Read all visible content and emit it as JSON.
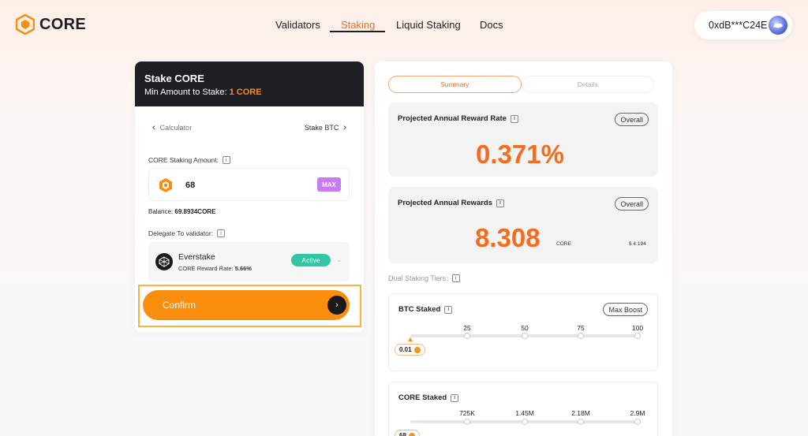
{
  "header": {
    "logo_text": "CORE",
    "nav": [
      {
        "label": "Validators"
      },
      {
        "label": "Staking"
      },
      {
        "label": "Liquid Staking"
      },
      {
        "label": "Docs"
      }
    ],
    "wallet_address": "0xdB***C24E"
  },
  "stake_card": {
    "title": "Stake CORE",
    "min_label": "Min Amount to Stake:",
    "min_value": "1 CORE",
    "calculator_label": "Calculator",
    "stake_btc_label": "Stake BTC",
    "amount_label": "CORE Staking Amount:",
    "amount_value": "68",
    "max_label": "MAX",
    "balance_label": "Balance:",
    "balance_value": "69.8934CORE",
    "delegate_label": "Delegate To validator:",
    "validator_name": "Everstake",
    "validator_rate_label": "CORE Reward Rate:",
    "validator_rate_value": "5.66%",
    "validator_status": "Active",
    "confirm_label": "Confirm"
  },
  "summary": {
    "tabs": [
      {
        "label": "Summary"
      },
      {
        "label": "Details"
      }
    ],
    "rate_title": "Projected Annual Reward Rate",
    "rate_value": "0.371%",
    "overall_label": "Overall",
    "rewards_title": "Projected Annual Rewards",
    "rewards_value": "8.308",
    "rewards_unit": "CORE",
    "rewards_usd": "$ 4.194",
    "tiers_label": "Dual Staking Tiers:",
    "btc_tier": {
      "title": "BTC Staked",
      "boost_label": "Max Boost",
      "ticks": [
        "25",
        "50",
        "75",
        "100"
      ],
      "current": "0.01"
    },
    "core_tier": {
      "title": "CORE Staked",
      "ticks": [
        "725K",
        "1.45M",
        "2.18M",
        "2.9M"
      ],
      "current": "68"
    }
  }
}
